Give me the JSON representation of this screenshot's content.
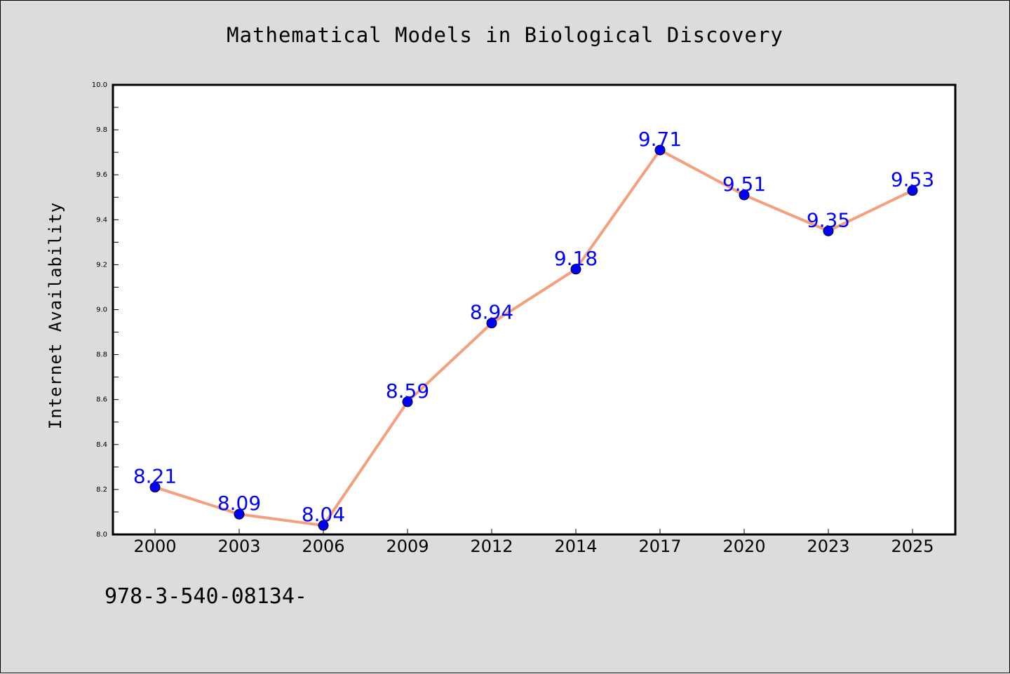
{
  "chart_data": {
    "type": "line",
    "title": "Mathematical Models in Biological Discovery",
    "xlabel": "",
    "ylabel": "Internet Availability",
    "categories": [
      "2000",
      "2003",
      "2006",
      "2009",
      "2012",
      "2014",
      "2017",
      "2020",
      "2023",
      "2025"
    ],
    "series": [
      {
        "values": [
          8.21,
          8.09,
          8.04,
          8.59,
          8.94,
          9.18,
          9.71,
          9.51,
          9.35,
          9.53
        ]
      }
    ],
    "data_labels": [
      "8.21",
      "8.09",
      "8.04",
      "8.59",
      "8.94",
      "9.18",
      "9.71",
      "9.51",
      "9.35",
      "9.53"
    ],
    "ylim": [
      8.0,
      10.0
    ],
    "yticks": [
      "8.0",
      "8.2",
      "8.4",
      "8.6",
      "8.8",
      "9.0",
      "9.2",
      "9.4",
      "9.6",
      "9.8",
      "10.0"
    ],
    "grid": false,
    "legend": "none",
    "colors": {
      "line": "#f4a07f",
      "marker": "#0000ff",
      "label": "#0000ff",
      "plot_background": "#ffffff",
      "figure_background": "#dcdcdc"
    }
  },
  "footer": {
    "code": "978-3-540-08134-"
  }
}
